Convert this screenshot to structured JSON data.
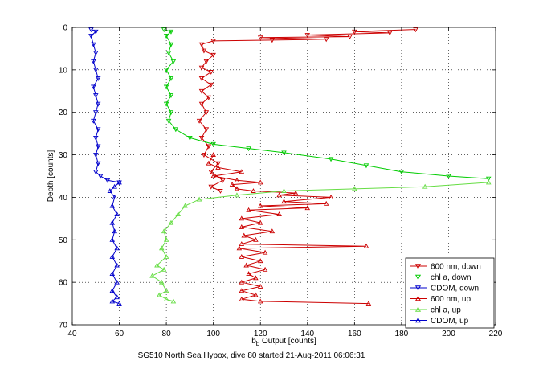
{
  "chart_data": {
    "type": "line",
    "title": "",
    "caption": "SG510 North Sea Hypox, dive 80 started 21-Aug-2011 06:06:31",
    "xlabel": {
      "main": "b",
      "sub": "b",
      "rest": " Output [counts]"
    },
    "ylabel": "Depth [counts]",
    "xlim": [
      40,
      220
    ],
    "ylim": [
      0,
      70
    ],
    "y_reversed": true,
    "grid": true,
    "legend_position": "bottom-right",
    "xticks": [
      "40",
      "60",
      "80",
      "100",
      "120",
      "140",
      "160",
      "180",
      "200",
      "220"
    ],
    "yticks": [
      "0",
      "10",
      "20",
      "30",
      "40",
      "50",
      "60",
      "70"
    ],
    "series": [
      {
        "name": "600 nm, down",
        "color": "#cc0000",
        "marker": "triangle-down",
        "points": [
          [
            186,
            0.5
          ],
          [
            160,
            1.0
          ],
          [
            175,
            1.3
          ],
          [
            140,
            1.8
          ],
          [
            158,
            2.2
          ],
          [
            120,
            2.4
          ],
          [
            148,
            2.8
          ],
          [
            125,
            3.0
          ],
          [
            100,
            3.2
          ],
          [
            95,
            4.0
          ],
          [
            96,
            5.5
          ],
          [
            100,
            6.5
          ],
          [
            97,
            8.0
          ],
          [
            95,
            9.5
          ],
          [
            99,
            10.5
          ],
          [
            95,
            12.0
          ],
          [
            99,
            13.5
          ],
          [
            95,
            15.0
          ],
          [
            98,
            16.5
          ],
          [
            95,
            18.0
          ],
          [
            97,
            20.0
          ],
          [
            94,
            22.0
          ],
          [
            97,
            24.0
          ],
          [
            95,
            26.0
          ],
          [
            98,
            28.0
          ],
          [
            96,
            30.0
          ],
          [
            102,
            32.0
          ],
          [
            99,
            34.0
          ],
          [
            104,
            36.0
          ],
          [
            99,
            37.5
          ],
          [
            103,
            38.5
          ]
        ]
      },
      {
        "name": "chl a, down",
        "color": "#00cc00",
        "marker": "triangle-down",
        "points": [
          [
            79,
            0.5
          ],
          [
            82,
            1.0
          ],
          [
            80,
            2.0
          ],
          [
            82,
            4.0
          ],
          [
            81,
            6.0
          ],
          [
            83,
            8.0
          ],
          [
            80,
            10.0
          ],
          [
            82,
            12.0
          ],
          [
            80,
            14.0
          ],
          [
            82,
            16.0
          ],
          [
            80,
            18.0
          ],
          [
            82,
            20.0
          ],
          [
            81,
            22.0
          ],
          [
            84,
            24.0
          ],
          [
            90,
            26.0
          ],
          [
            100,
            27.5
          ],
          [
            115,
            28.5
          ],
          [
            130,
            29.5
          ],
          [
            150,
            31.0
          ],
          [
            165,
            32.5
          ],
          [
            180,
            34.0
          ],
          [
            200,
            35.0
          ],
          [
            217,
            35.6
          ]
        ]
      },
      {
        "name": "CDOM, down",
        "color": "#0000cc",
        "marker": "triangle-down",
        "points": [
          [
            48,
            0.5
          ],
          [
            50,
            1.0
          ],
          [
            48,
            2.0
          ],
          [
            49,
            4.0
          ],
          [
            50,
            6.0
          ],
          [
            49,
            8.0
          ],
          [
            50,
            10.0
          ],
          [
            51,
            12.0
          ],
          [
            49,
            14.0
          ],
          [
            50,
            16.0
          ],
          [
            51,
            18.0
          ],
          [
            50,
            20.0
          ],
          [
            49,
            22.0
          ],
          [
            51,
            24.0
          ],
          [
            50,
            26.0
          ],
          [
            51,
            28.0
          ],
          [
            50,
            30.0
          ],
          [
            51,
            32.0
          ],
          [
            50,
            34.0
          ],
          [
            52,
            35.0
          ],
          [
            55,
            36.0
          ],
          [
            60,
            36.5
          ]
        ]
      },
      {
        "name": "600 nm, up",
        "color": "#cc0000",
        "marker": "triangle-up",
        "points": [
          [
            166,
            65.0
          ],
          [
            120,
            64.5
          ],
          [
            112,
            64.0
          ],
          [
            118,
            63.0
          ],
          [
            112,
            62.0
          ],
          [
            120,
            61.0
          ],
          [
            112,
            60.0
          ],
          [
            118,
            59.0
          ],
          [
            115,
            58.0
          ],
          [
            122,
            57.0
          ],
          [
            114,
            56.0
          ],
          [
            120,
            55.0
          ],
          [
            112,
            54.0
          ],
          [
            122,
            53.0
          ],
          [
            111,
            52.0
          ],
          [
            165,
            51.5
          ],
          [
            112,
            51.0
          ],
          [
            118,
            50.0
          ],
          [
            113,
            49.0
          ],
          [
            125,
            48.0
          ],
          [
            112,
            47.0
          ],
          [
            120,
            46.0
          ],
          [
            112,
            45.0
          ],
          [
            128,
            44.0
          ],
          [
            115,
            43.0
          ],
          [
            140,
            42.5
          ],
          [
            120,
            42.0
          ],
          [
            148,
            41.5
          ],
          [
            130,
            41.0
          ],
          [
            150,
            40.0
          ],
          [
            128,
            39.5
          ],
          [
            135,
            39.0
          ],
          [
            117,
            38.5
          ],
          [
            110,
            38.0
          ],
          [
            108,
            37.0
          ],
          [
            120,
            36.5
          ],
          [
            110,
            36.0
          ],
          [
            100,
            35.0
          ],
          [
            112,
            34.0
          ],
          [
            102,
            33.0
          ],
          [
            98,
            32.0
          ],
          [
            100,
            30.0
          ]
        ]
      },
      {
        "name": "chl a, up",
        "color": "#66dd44",
        "marker": "triangle-up",
        "points": [
          [
            83,
            64.5
          ],
          [
            80,
            64.0
          ],
          [
            77,
            63.0
          ],
          [
            80,
            62.0
          ],
          [
            78,
            60.0
          ],
          [
            74,
            58.5
          ],
          [
            79,
            57.0
          ],
          [
            76,
            56.0
          ],
          [
            80,
            54.0
          ],
          [
            78,
            52.0
          ],
          [
            80,
            50.0
          ],
          [
            79,
            48.0
          ],
          [
            82,
            46.0
          ],
          [
            85,
            44.0
          ],
          [
            88,
            42.0
          ],
          [
            94,
            40.5
          ],
          [
            110,
            39.5
          ],
          [
            130,
            38.5
          ],
          [
            160,
            38.0
          ],
          [
            190,
            37.5
          ],
          [
            217,
            36.5
          ]
        ]
      },
      {
        "name": "CDOM, up",
        "color": "#0000cc",
        "marker": "triangle-up",
        "points": [
          [
            60,
            65.0
          ],
          [
            57,
            64.5
          ],
          [
            59,
            63.5
          ],
          [
            57,
            62.0
          ],
          [
            59,
            60.0
          ],
          [
            57,
            58.0
          ],
          [
            59,
            56.0
          ],
          [
            57,
            54.0
          ],
          [
            59,
            52.0
          ],
          [
            57,
            50.0
          ],
          [
            58,
            48.0
          ],
          [
            57,
            46.0
          ],
          [
            59,
            44.0
          ],
          [
            57,
            42.0
          ],
          [
            58,
            40.0
          ],
          [
            56,
            38.5
          ],
          [
            58,
            37.5
          ],
          [
            60,
            36.5
          ]
        ]
      }
    ]
  }
}
